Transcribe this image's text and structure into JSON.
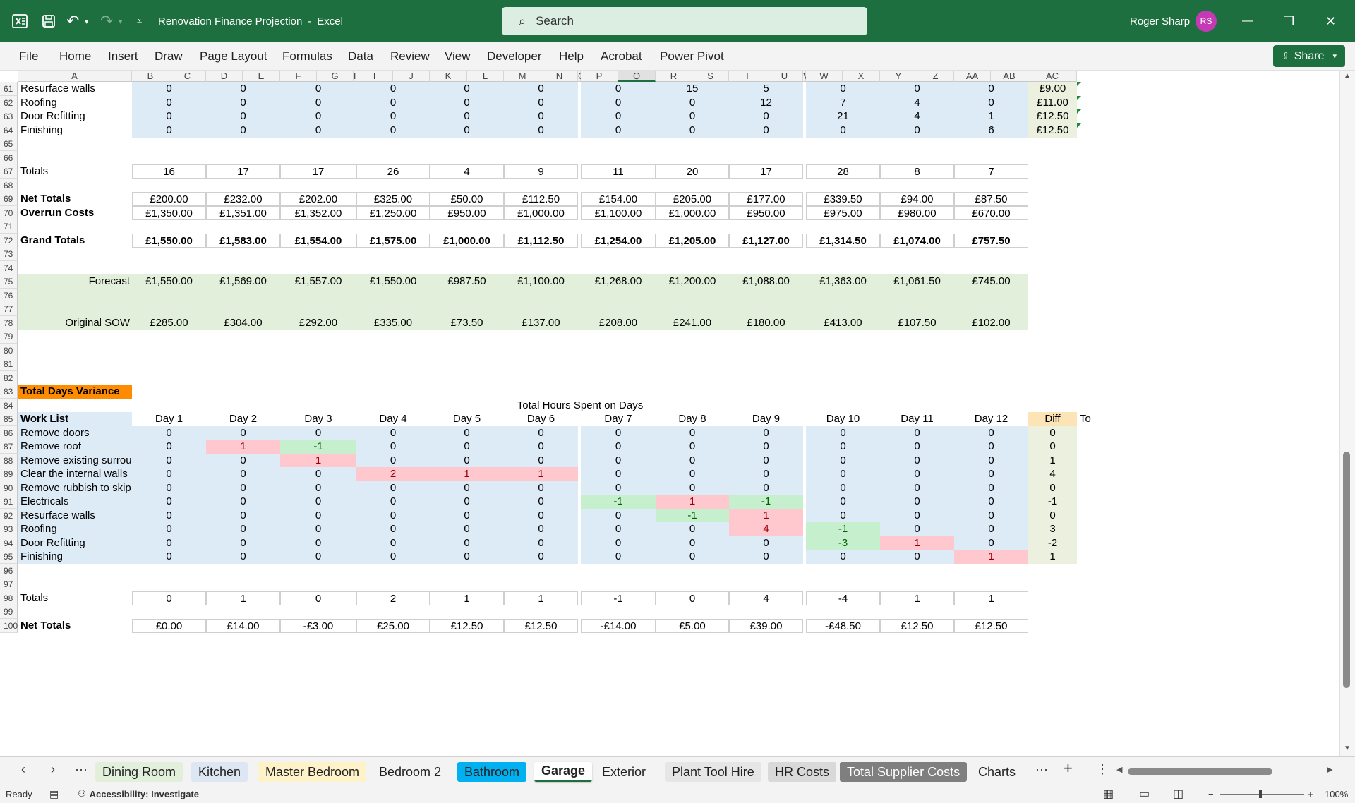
{
  "titlebar": {
    "doc_title": "Renovation Finance Projection",
    "separator": "-",
    "app_name": "Excel",
    "search_placeholder": "Search",
    "user_name": "Roger Sharp",
    "user_initials": "RS",
    "minimize": "—",
    "restore": "❐",
    "close": "✕"
  },
  "ribbon": {
    "tabs": [
      "File",
      "Home",
      "Insert",
      "Draw",
      "Page Layout",
      "Formulas",
      "Data",
      "Review",
      "View",
      "Developer",
      "Help",
      "Acrobat",
      "Power Pivot"
    ],
    "share_label": "Share"
  },
  "columns": [
    "A",
    "B",
    "C",
    "D",
    "E",
    "F",
    "G",
    "H",
    "I",
    "J",
    "K",
    "L",
    "M",
    "N",
    "O",
    "P",
    "Q",
    "R",
    "S",
    "T",
    "U",
    "V",
    "W",
    "X",
    "Y",
    "Z",
    "AA",
    "AB",
    "AC"
  ],
  "rows": {
    "r61": {
      "num": "61",
      "label": "Resurface walls",
      "values": [
        "0",
        "0",
        "0",
        "0",
        "0",
        "0",
        "0",
        "15",
        "5",
        "0",
        "0",
        "0"
      ],
      "rate": "£9.00"
    },
    "r62": {
      "num": "62",
      "label": "Roofing",
      "values": [
        "0",
        "0",
        "0",
        "0",
        "0",
        "0",
        "0",
        "0",
        "12",
        "7",
        "4",
        "0"
      ],
      "rate": "£11.00"
    },
    "r63": {
      "num": "63",
      "label": "Door Refitting",
      "values": [
        "0",
        "0",
        "0",
        "0",
        "0",
        "0",
        "0",
        "0",
        "0",
        "21",
        "4",
        "1"
      ],
      "rate": "£12.50"
    },
    "r64": {
      "num": "64",
      "label": "Finishing",
      "values": [
        "0",
        "0",
        "0",
        "0",
        "0",
        "0",
        "0",
        "0",
        "0",
        "0",
        "0",
        "6"
      ],
      "rate": "£12.50"
    },
    "r67": {
      "num": "67",
      "label": "Totals",
      "values": [
        "16",
        "17",
        "17",
        "26",
        "4",
        "9",
        "11",
        "20",
        "17",
        "28",
        "8",
        "7"
      ]
    },
    "r69": {
      "num": "69",
      "label": "Net Totals",
      "values": [
        "£200.00",
        "£232.00",
        "£202.00",
        "£325.00",
        "£50.00",
        "£112.50",
        "£154.00",
        "£205.00",
        "£177.00",
        "£339.50",
        "£94.00",
        "£87.50"
      ]
    },
    "r70": {
      "num": "70",
      "label": "Overrun Costs",
      "values": [
        "£1,350.00",
        "£1,351.00",
        "£1,352.00",
        "£1,250.00",
        "£950.00",
        "£1,000.00",
        "£1,100.00",
        "£1,000.00",
        "£950.00",
        "£975.00",
        "£980.00",
        "£670.00"
      ]
    },
    "r72": {
      "num": "72",
      "label": "Grand Totals",
      "values": [
        "£1,550.00",
        "£1,583.00",
        "£1,554.00",
        "£1,575.00",
        "£1,000.00",
        "£1,112.50",
        "£1,254.00",
        "£1,205.00",
        "£1,127.00",
        "£1,314.50",
        "£1,074.00",
        "£757.50"
      ]
    },
    "r75": {
      "num": "75",
      "label": "Forecast",
      "values": [
        "£1,550.00",
        "£1,569.00",
        "£1,557.00",
        "£1,550.00",
        "£987.50",
        "£1,100.00",
        "£1,268.00",
        "£1,200.00",
        "£1,088.00",
        "£1,363.00",
        "£1,061.50",
        "£745.00"
      ]
    },
    "r78": {
      "num": "78",
      "label": "Original SOW",
      "values": [
        "£285.00",
        "£304.00",
        "£292.00",
        "£335.00",
        "£73.50",
        "£137.00",
        "£208.00",
        "£241.00",
        "£180.00",
        "£413.00",
        "£107.50",
        "£102.00"
      ]
    },
    "r83": {
      "num": "83",
      "label": "Total Days Variance"
    },
    "r84": {
      "num": "84",
      "title": "Total Hours Spent on Days"
    },
    "r85": {
      "num": "85",
      "label": "Work List",
      "values": [
        "Day 1",
        "Day 2",
        "Day 3",
        "Day 4",
        "Day 5",
        "Day 6",
        "Day 7",
        "Day 8",
        "Day 9",
        "Day 10",
        "Day 11",
        "Day 12"
      ],
      "diff": "Diff",
      "to": "To"
    },
    "r86": {
      "num": "86",
      "label": "Remove doors",
      "values": [
        "0",
        "0",
        "0",
        "0",
        "0",
        "0",
        "0",
        "0",
        "0",
        "0",
        "0",
        "0"
      ],
      "diff": "0"
    },
    "r87": {
      "num": "87",
      "label": "Remove roof",
      "values": [
        "0",
        "1",
        "-1",
        "0",
        "0",
        "0",
        "0",
        "0",
        "0",
        "0",
        "0",
        "0"
      ],
      "diff": "0"
    },
    "r88": {
      "num": "88",
      "label": "Remove existing surround",
      "values": [
        "0",
        "0",
        "1",
        "0",
        "0",
        "0",
        "0",
        "0",
        "0",
        "0",
        "0",
        "0"
      ],
      "diff": "1"
    },
    "r89": {
      "num": "89",
      "label": "Clear the internal walls",
      "values": [
        "0",
        "0",
        "0",
        "2",
        "1",
        "1",
        "0",
        "0",
        "0",
        "0",
        "0",
        "0"
      ],
      "diff": "4"
    },
    "r90": {
      "num": "90",
      "label": "Remove rubbish to skip",
      "values": [
        "0",
        "0",
        "0",
        "0",
        "0",
        "0",
        "0",
        "0",
        "0",
        "0",
        "0",
        "0"
      ],
      "diff": "0"
    },
    "r91": {
      "num": "91",
      "label": "Electricals",
      "values": [
        "0",
        "0",
        "0",
        "0",
        "0",
        "0",
        "-1",
        "1",
        "-1",
        "0",
        "0",
        "0"
      ],
      "diff": "-1"
    },
    "r92": {
      "num": "92",
      "label": "Resurface walls",
      "values": [
        "0",
        "0",
        "0",
        "0",
        "0",
        "0",
        "0",
        "-1",
        "1",
        "0",
        "0",
        "0"
      ],
      "diff": "0"
    },
    "r93": {
      "num": "93",
      "label": "Roofing",
      "values": [
        "0",
        "0",
        "0",
        "0",
        "0",
        "0",
        "0",
        "0",
        "4",
        "-1",
        "0",
        "0"
      ],
      "diff": "3"
    },
    "r94": {
      "num": "94",
      "label": "Door Refitting",
      "values": [
        "0",
        "0",
        "0",
        "0",
        "0",
        "0",
        "0",
        "0",
        "0",
        "-3",
        "1",
        "0"
      ],
      "diff": "-2"
    },
    "r95": {
      "num": "95",
      "label": "Finishing",
      "values": [
        "0",
        "0",
        "0",
        "0",
        "0",
        "0",
        "0",
        "0",
        "0",
        "0",
        "0",
        "1"
      ],
      "diff": "1"
    },
    "r98": {
      "num": "98",
      "label": "Totals",
      "values": [
        "0",
        "1",
        "0",
        "2",
        "1",
        "1",
        "-1",
        "0",
        "4",
        "-4",
        "1",
        "1"
      ]
    },
    "r100": {
      "num": "100",
      "label": "Net Totals",
      "values": [
        "£0.00",
        "£14.00",
        "-£3.00",
        "£25.00",
        "£12.50",
        "£12.50",
        "-£14.00",
        "£5.00",
        "£39.00",
        "-£48.50",
        "£12.50",
        "£12.50"
      ]
    },
    "empty": [
      "65",
      "66",
      "68",
      "71",
      "73",
      "74",
      "76",
      "77",
      "79",
      "80",
      "81",
      "82",
      "96",
      "97",
      "99"
    ]
  },
  "sheet_tabs": [
    "Dining Room",
    "Kitchen",
    "Master Bedroom",
    "Bedroom 2",
    "Bathroom",
    "Garage",
    "Exterior",
    "Plant Tool Hire",
    "HR Costs",
    "Total Supplier Costs",
    "Charts"
  ],
  "active_tab": "Garage",
  "status": {
    "ready": "Ready",
    "accessibility": "Accessibility: Investigate",
    "zoom": "100%"
  },
  "colors": {
    "excel_green": "#1d6f3f",
    "cell_blue": "#ddebf7",
    "cell_green": "#e2efda",
    "over_pink": "#ffc7ce",
    "under_green": "#c6efce",
    "header_orange": "#ff8c00"
  }
}
